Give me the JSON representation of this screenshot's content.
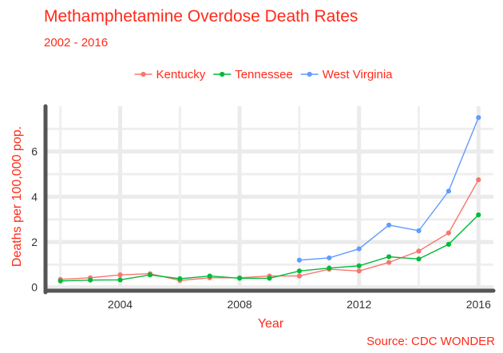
{
  "chart_data": {
    "type": "line",
    "title": "Methamphetamine Overdose Death Rates",
    "subtitle": "2002 - 2016",
    "xlabel": "Year",
    "ylabel": "Deaths per 100,000 pop.",
    "caption": "Source: CDC WONDER",
    "legend_position": "top",
    "grid": true,
    "xlim": [
      2001.5,
      2016.5
    ],
    "ylim": [
      -0.15,
      8.0
    ],
    "x_ticks": [
      2004,
      2008,
      2012,
      2016
    ],
    "y_ticks": [
      0,
      2,
      4,
      6
    ],
    "series": [
      {
        "name": "Kentucky",
        "color": "#f8766d",
        "x": [
          2002,
          2003,
          2004,
          2005,
          2006,
          2007,
          2008,
          2009,
          2010,
          2011,
          2012,
          2013,
          2014,
          2015,
          2016
        ],
        "values": [
          0.35,
          0.42,
          0.55,
          0.6,
          0.3,
          0.42,
          0.42,
          0.5,
          0.5,
          0.8,
          0.72,
          1.1,
          1.6,
          2.4,
          4.75
        ]
      },
      {
        "name": "Tennessee",
        "color": "#00ba38",
        "x": [
          2002,
          2003,
          2004,
          2005,
          2006,
          2007,
          2008,
          2009,
          2010,
          2011,
          2012,
          2013,
          2014,
          2015,
          2016
        ],
        "values": [
          0.28,
          0.32,
          0.33,
          0.55,
          0.38,
          0.5,
          0.4,
          0.4,
          0.72,
          0.85,
          0.95,
          1.35,
          1.25,
          1.9,
          3.2
        ]
      },
      {
        "name": "West Virginia",
        "color": "#619cff",
        "x": [
          2010,
          2011,
          2012,
          2013,
          2014,
          2015,
          2016
        ],
        "values": [
          1.2,
          1.3,
          1.7,
          2.75,
          2.5,
          4.25,
          7.5
        ]
      }
    ]
  }
}
